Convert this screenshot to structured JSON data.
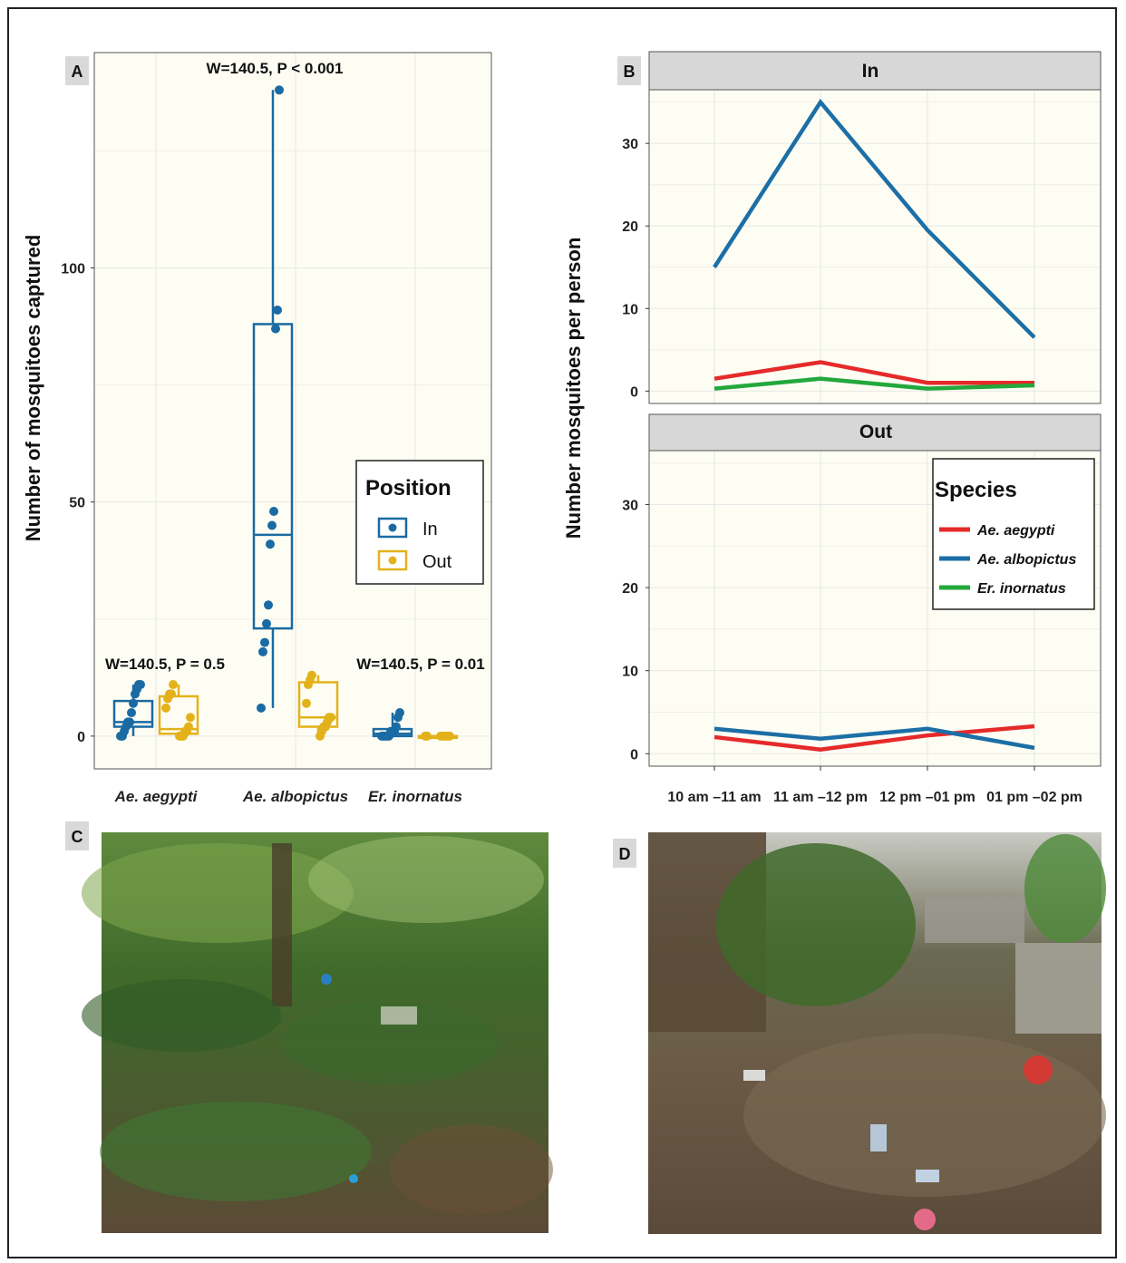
{
  "panels": {
    "a_badge": "A",
    "b_badge": "B",
    "c_badge": "C",
    "d_badge": "D"
  },
  "colors": {
    "in": "#1a6aa3",
    "out": "#e3b21b",
    "aegypti": "#e52a2a",
    "albopictus": "#1c6fa6",
    "inornatus": "#23a83c"
  },
  "chart_data": [
    {
      "type": "boxplot",
      "panel": "A",
      "ylabel": "Number of mosquitoes captured",
      "ylim": [
        -7,
        146
      ],
      "yticks": [
        0,
        50,
        100
      ],
      "categories": [
        "Ae. aegypti",
        "Ae. albopictus",
        "Er. inornatus"
      ],
      "legend": {
        "title": "Position",
        "entries": [
          "In",
          "Out"
        ],
        "placement": "right"
      },
      "annotations": [
        "W=140.5, P = 0.5",
        "W=140.5, P < 0.001",
        "W=140.5, P = 0.01"
      ],
      "boxes": [
        {
          "category": "Ae. aegypti",
          "group": "In",
          "min": 0,
          "q1": 2,
          "median": 3,
          "q3": 7.5,
          "max": 11,
          "points": [
            0,
            0,
            1,
            2,
            3,
            3,
            5,
            7,
            9,
            10,
            11,
            11
          ]
        },
        {
          "category": "Ae. aegypti",
          "group": "Out",
          "min": 0,
          "q1": 0.5,
          "median": 1.5,
          "q3": 8.5,
          "max": 11,
          "points": [
            0,
            0,
            0,
            1,
            1,
            2,
            4,
            6,
            8,
            9,
            9,
            11
          ]
        },
        {
          "category": "Ae. albopictus",
          "group": "In",
          "min": 6,
          "q1": 23,
          "median": 43,
          "q3": 88,
          "max": 138,
          "points": [
            6,
            18,
            20,
            24,
            28,
            41,
            45,
            48,
            87,
            91,
            138
          ]
        },
        {
          "category": "Ae. albopictus",
          "group": "Out",
          "min": 0,
          "q1": 2,
          "median": 4,
          "q3": 11.5,
          "max": 13,
          "points": [
            0,
            1,
            2,
            2,
            3,
            4,
            4,
            7,
            11,
            12,
            13
          ]
        },
        {
          "category": "Er. inornatus",
          "group": "In",
          "min": 0,
          "q1": 0,
          "median": 0.5,
          "q3": 1.5,
          "max": 5,
          "points": [
            0,
            0,
            0,
            0,
            0,
            1,
            1,
            1,
            2,
            4,
            5
          ]
        },
        {
          "category": "Er. inornatus",
          "group": "Out",
          "min": 0,
          "q1": 0,
          "median": 0,
          "q3": 0,
          "max": 0,
          "points": [
            0,
            0,
            0,
            0,
            0,
            0,
            0,
            0
          ]
        }
      ]
    },
    {
      "type": "line",
      "panel": "B",
      "ylabel": "Number mosquitoes per person",
      "ylim": [
        -1.5,
        36.5
      ],
      "yticks": [
        0,
        10,
        20,
        30
      ],
      "x": [
        "10 am –11 am",
        "11 am –12 pm",
        "12 pm –01 pm",
        "01 pm –02 pm"
      ],
      "legend": {
        "title": "Species",
        "placement": "right"
      },
      "facets": [
        {
          "label": "In",
          "series": [
            {
              "name": "Ae. aegypti",
              "values": [
                1.5,
                3.5,
                1.0,
                1.0
              ]
            },
            {
              "name": "Ae. albopictus",
              "values": [
                15,
                35,
                19.5,
                6.5
              ]
            },
            {
              "name": "Er. inornatus",
              "values": [
                0.3,
                1.5,
                0.3,
                0.7
              ]
            }
          ]
        },
        {
          "label": "Out",
          "series": [
            {
              "name": "Ae. aegypti",
              "values": [
                2.0,
                0.5,
                2.2,
                3.3
              ]
            },
            {
              "name": "Ae. albopictus",
              "values": [
                3.0,
                1.8,
                3.0,
                0.7
              ]
            },
            {
              "name": "Er. inornatus",
              "values": [
                null,
                null,
                null,
                null
              ]
            }
          ]
        }
      ]
    }
  ]
}
